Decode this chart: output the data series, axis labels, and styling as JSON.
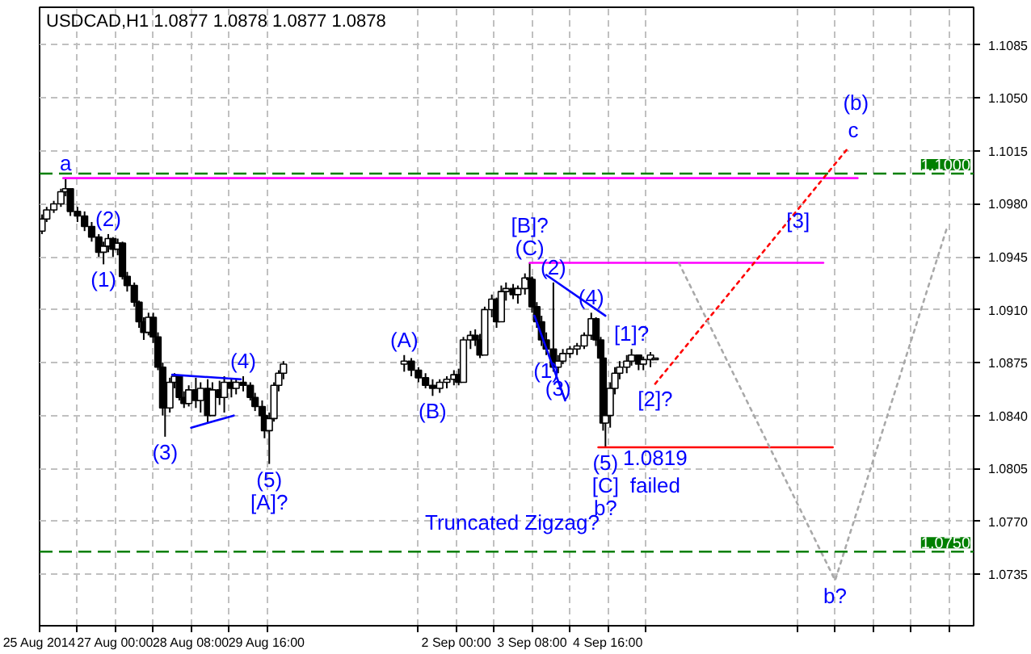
{
  "chart_data": {
    "type": "candlestick",
    "title": "USDCAD,H1  1.0877 1.0878 1.0877 1.0878",
    "color": "#000000",
    "x": [
      "2014-08-25T17:00",
      "2014-08-25T19:00",
      "2014-08-25T22:00",
      "2014-08-26T01:00",
      "2014-08-26T03:00",
      "2014-08-26T05:00",
      "2014-08-26T08:00",
      "2014-08-26T11:00",
      "2014-08-26T14:00",
      "2014-08-26T17:00",
      "2014-08-26T19:00",
      "2014-08-26T21:00",
      "2014-08-26T23:00",
      "2014-08-27T01:00",
      "2014-08-27T03:00",
      "2014-08-27T05:00",
      "2014-08-27T08:00",
      "2014-08-27T10:00",
      "2014-08-27T12:00",
      "2014-08-27T14:00",
      "2014-08-27T16:00",
      "2014-08-27T18:00",
      "2014-08-27T20:00",
      "2014-08-27T21:00",
      "2014-08-27T23:00",
      "2014-08-28T01:00",
      "2014-08-28T03:00",
      "2014-08-28T05:00",
      "2014-08-28T07:00",
      "2014-08-28T10:00",
      "2014-08-28T12:00",
      "2014-08-28T15:00",
      "2014-08-28T17:00",
      "2014-08-28T20:00",
      "2014-08-28T22:00",
      "2014-08-29T01:00",
      "2014-08-29T03:00",
      "2014-08-29T06:00",
      "2014-08-29T09:00",
      "2014-08-29T11:00",
      "2014-08-29T14:00",
      "2014-08-29T15:00",
      "2014-08-29T17:00",
      "2014-08-29T19:00",
      "2014-08-29T21:00",
      "2014-08-29T23:00",
      "2014-09-01T02:00",
      "2014-09-01T05:00",
      "2014-09-01T08:00",
      "2014-09-01T11:00",
      "2014-09-01T14:00",
      "2014-09-01T17:00",
      "2014-09-01T20:00",
      "2014-09-01T23:00",
      "2014-09-02T01:00",
      "2014-09-02T03:00",
      "2014-09-02T06:00",
      "2014-09-02T08:00",
      "2014-09-02T10:00",
      "2014-09-02T12:00",
      "2014-09-02T15:00",
      "2014-09-02T17:00",
      "2014-09-02T19:00",
      "2014-09-02T21:00",
      "2014-09-03T00:00",
      "2014-09-03T02:00",
      "2014-09-03T05:00",
      "2014-09-03T07:00",
      "2014-09-03T08:00",
      "2014-09-03T10:00",
      "2014-09-03T12:00",
      "2014-09-03T14:00",
      "2014-09-03T17:00",
      "2014-09-03T19:00",
      "2014-09-03T21:00",
      "2014-09-04T00:00",
      "2014-09-04T03:00",
      "2014-09-04T06:00",
      "2014-09-04T09:00",
      "2014-09-04T11:00",
      "2014-09-04T13:00",
      "2014-09-04T14:00",
      "2014-09-04T15:00",
      "2014-09-04T17:00",
      "2014-09-04T19:00",
      "2014-09-04T21:00",
      "2014-09-05T00:00",
      "2014-09-05T02:00",
      "2014-09-05T05:00",
      "2014-09-05T07:00",
      "2014-09-05T10:00",
      "2014-09-05T12:00"
    ],
    "ohlc": [
      [
        1.0962,
        1.0973,
        1.096,
        1.097
      ],
      [
        1.097,
        1.0978,
        1.0968,
        1.0976
      ],
      [
        1.0976,
        1.0982,
        1.0974,
        1.098
      ],
      [
        1.098,
        1.099,
        1.0978,
        1.0988
      ],
      [
        1.0988,
        1.0997,
        1.0985,
        1.099
      ],
      [
        1.099,
        1.099,
        1.0972,
        1.0975
      ],
      [
        1.0975,
        1.0978,
        1.0968,
        1.0972
      ],
      [
        1.0972,
        1.0975,
        1.0962,
        1.0965
      ],
      [
        1.0965,
        1.0968,
        1.0955,
        1.0958
      ],
      [
        1.0958,
        1.096,
        1.0945,
        1.0948
      ],
      [
        1.0948,
        1.0955,
        1.094,
        1.0952
      ],
      [
        1.0952,
        1.096,
        1.0948,
        1.0957
      ],
      [
        1.0957,
        1.0958,
        1.0945,
        1.095
      ],
      [
        1.095,
        1.0957,
        1.0946,
        1.0954
      ],
      [
        1.0954,
        1.0955,
        1.093,
        1.0932
      ],
      [
        1.0932,
        1.0935,
        1.0922,
        1.0926
      ],
      [
        1.0926,
        1.0928,
        1.0912,
        1.0915
      ],
      [
        1.0915,
        1.0916,
        1.0898,
        1.0902
      ],
      [
        1.0902,
        1.0905,
        1.089,
        1.0895
      ],
      [
        1.0895,
        1.0908,
        1.0893,
        1.0905
      ],
      [
        1.0905,
        1.0908,
        1.0888,
        1.0892
      ],
      [
        1.0892,
        1.0895,
        1.087,
        1.0872
      ],
      [
        1.0872,
        1.0875,
        1.084,
        1.0845
      ],
      [
        1.0845,
        1.085,
        1.0826,
        1.0845
      ],
      [
        1.0845,
        1.0865,
        1.0842,
        1.0862
      ],
      [
        1.0862,
        1.0868,
        1.0858,
        1.0866
      ],
      [
        1.0866,
        1.0866,
        1.085,
        1.0852
      ],
      [
        1.0852,
        1.0856,
        1.0845,
        1.0848
      ],
      [
        1.0848,
        1.086,
        1.0846,
        1.0857
      ],
      [
        1.0857,
        1.0865,
        1.0845,
        1.085
      ],
      [
        1.085,
        1.0862,
        1.0842,
        1.0858
      ],
      [
        1.0858,
        1.0864,
        1.0835,
        1.084
      ],
      [
        1.084,
        1.0862,
        1.084,
        1.0857
      ],
      [
        1.0857,
        1.0863,
        1.0847,
        1.0852
      ],
      [
        1.0852,
        1.0866,
        1.0842,
        1.0862
      ],
      [
        1.0862,
        1.0864,
        1.0852,
        1.0858
      ],
      [
        1.0858,
        1.0864,
        1.0854,
        1.0862
      ],
      [
        1.0862,
        1.0866,
        1.0856,
        1.086
      ],
      [
        1.086,
        1.0862,
        1.085,
        1.0852
      ],
      [
        1.0852,
        1.0855,
        1.0843,
        1.0846
      ],
      [
        1.0846,
        1.085,
        1.0838,
        1.084
      ],
      [
        1.084,
        1.0845,
        1.0825,
        1.083
      ],
      [
        1.083,
        1.0842,
        1.0808,
        1.0838
      ],
      [
        1.0838,
        1.0862,
        1.0836,
        1.086
      ],
      [
        1.086,
        1.087,
        1.0856,
        1.0868
      ],
      [
        1.0868,
        1.0876,
        1.0864,
        1.0874
      ],
      [
        1.0874,
        1.088,
        1.0869,
        1.0876
      ],
      [
        1.0876,
        1.0878,
        1.0866,
        1.087
      ],
      [
        1.087,
        1.0872,
        1.0862,
        1.0865
      ],
      [
        1.0865,
        1.0868,
        1.0858,
        1.086
      ],
      [
        1.086,
        1.0864,
        1.0853,
        1.0858
      ],
      [
        1.0858,
        1.0864,
        1.0855,
        1.0862
      ],
      [
        1.0862,
        1.0866,
        1.0858,
        1.0864
      ],
      [
        1.0864,
        1.087,
        1.086,
        1.0867
      ],
      [
        1.0867,
        1.0871,
        1.086,
        1.0862
      ],
      [
        1.0862,
        1.0892,
        1.0862,
        1.089
      ],
      [
        1.089,
        1.0896,
        1.0884,
        1.0893
      ],
      [
        1.0893,
        1.0897,
        1.0886,
        1.089
      ],
      [
        1.089,
        1.0894,
        1.0878,
        1.088
      ],
      [
        1.088,
        1.0912,
        1.088,
        1.091
      ],
      [
        1.091,
        1.092,
        1.0905,
        1.0917
      ],
      [
        1.0917,
        1.0918,
        1.0898,
        1.0902
      ],
      [
        1.0902,
        1.0926,
        1.0902,
        1.0922
      ],
      [
        1.0922,
        1.0928,
        1.0916,
        1.0924
      ],
      [
        1.0924,
        1.0927,
        1.0917,
        1.092
      ],
      [
        1.092,
        1.0926,
        1.0914,
        1.0924
      ],
      [
        1.0924,
        1.0934,
        1.092,
        1.0931
      ],
      [
        1.0931,
        1.0941,
        1.0926,
        1.093
      ],
      [
        1.093,
        1.0932,
        1.0908,
        1.0912
      ],
      [
        1.0912,
        1.0915,
        1.0898,
        1.0902
      ],
      [
        1.0902,
        1.0906,
        1.0886,
        1.089
      ],
      [
        1.089,
        1.0895,
        1.088,
        1.0884
      ],
      [
        1.0884,
        1.0928,
        1.0869,
        1.0872
      ],
      [
        1.0872,
        1.088,
        1.0868,
        1.0876
      ],
      [
        1.0876,
        1.0884,
        1.0874,
        1.0881
      ],
      [
        1.0881,
        1.0886,
        1.0878,
        1.0884
      ],
      [
        1.0884,
        1.0888,
        1.088,
        1.0886
      ],
      [
        1.0886,
        1.0895,
        1.0884,
        1.0893
      ],
      [
        1.0893,
        1.0908,
        1.089,
        1.0904
      ],
      [
        1.0904,
        1.0905,
        1.0886,
        1.089
      ],
      [
        1.089,
        1.0892,
        1.0875,
        1.0878
      ],
      [
        1.0878,
        1.088,
        1.083,
        1.0835
      ],
      [
        1.0835,
        1.0848,
        1.0819,
        1.084
      ],
      [
        1.084,
        1.0862,
        1.0832,
        1.0858
      ],
      [
        1.0858,
        1.0872,
        1.0854,
        1.0868
      ],
      [
        1.0868,
        1.0876,
        1.0864,
        1.0872
      ],
      [
        1.0872,
        1.088,
        1.0868,
        1.0876
      ],
      [
        1.0876,
        1.0884,
        1.0873,
        1.088
      ],
      [
        1.088,
        1.088,
        1.087,
        1.0874
      ],
      [
        1.0874,
        1.0879,
        1.087,
        1.0877
      ],
      [
        1.0877,
        1.0882,
        1.0872,
        1.088
      ],
      [
        1.0877,
        1.0878,
        1.0877,
        1.0878
      ]
    ],
    "series": [
      {
        "type": "line",
        "color": "#ff00ff",
        "line_style": "solid",
        "x": [
          "2014-08-26T02:00",
          "2014-09-09T01:30"
        ],
        "values": [
          1.0997,
          1.0997
        ]
      },
      {
        "type": "line",
        "color": "#ff00ff",
        "line_style": "solid",
        "x": [
          "2014-09-03T07:00",
          "2014-09-08T11:00"
        ],
        "values": [
          1.0941,
          1.0941
        ]
      },
      {
        "type": "line",
        "color": "#ff0000",
        "line_style": "solid",
        "x": [
          "2014-09-04T12:00",
          "2014-09-08T15:00"
        ],
        "values": [
          1.0819,
          1.0819
        ]
      },
      {
        "type": "line",
        "color": "#0000ff",
        "line_style": "solid",
        "x": [
          "2014-08-28T00:00",
          "2014-08-29T05:00"
        ],
        "values": [
          1.0867,
          1.0864
        ]
      },
      {
        "type": "line",
        "color": "#0000ff",
        "line_style": "solid",
        "x": [
          "2014-08-28T08:00",
          "2014-08-29T02:00"
        ],
        "values": [
          1.0832,
          1.084
        ]
      },
      {
        "type": "line",
        "color": "#0000ff",
        "line_style": "solid",
        "x": [
          "2014-09-03T14:00",
          "2014-09-04T15:00"
        ],
        "values": [
          1.0933,
          1.0906
        ]
      },
      {
        "type": "line",
        "color": "#0000ff",
        "line_style": "solid",
        "x": [
          "2014-09-03T09:00",
          "2014-09-03T22:00"
        ],
        "values": [
          1.0906,
          1.085
        ]
      },
      {
        "type": "line",
        "color": "#ff0000",
        "line_style": "dotted",
        "x": [
          "2014-09-05T12:00",
          "2014-09-08T21:00"
        ],
        "values": [
          1.0861,
          1.1016
        ]
      },
      {
        "type": "line",
        "color": "#a9a9a9",
        "line_style": "dotted",
        "x": [
          "2014-09-05T22:00",
          "2014-09-08T16:00",
          "2014-09-10T15:00"
        ],
        "values": [
          1.0941,
          1.0731,
          1.0963
        ]
      }
    ],
    "ref_lines": [
      {
        "axis": "y",
        "value": 1.1,
        "label": "1.1000",
        "color": "#007f00",
        "line_style": "dashed"
      },
      {
        "axis": "y",
        "value": 1.075,
        "label": "1.0750",
        "color": "#007f00",
        "line_style": "dashed"
      }
    ],
    "annotations": [
      {
        "text": "a",
        "x": "2014-08-26T03:00",
        "y": 1.0997
      },
      {
        "text": "(2)",
        "x": "2014-08-26T21:00",
        "y": 1.096
      },
      {
        "text": "(1)",
        "x": "2014-08-26T19:00",
        "y": 1.094
      },
      {
        "text": "(3)",
        "x": "2014-08-27T21:00",
        "y": 1.0826
      },
      {
        "text": "(4)",
        "x": "2014-08-29T06:00",
        "y": 1.0866
      },
      {
        "text": "(A)",
        "x": "2014-09-01T02:00",
        "y": 1.088
      },
      {
        "text": "(B)",
        "x": "2014-09-01T14:00",
        "y": 1.0853
      },
      {
        "text": "(5)",
        "x": "2014-08-29T17:00",
        "y": 1.0808
      },
      {
        "text": "[A]?",
        "x": "2014-08-29T17:00",
        "y": 1.0808
      },
      "Truncated Zigzag?",
      {
        "text": "(C)",
        "x": "2014-09-03T07:00",
        "y": 1.0941
      },
      {
        "text": "[B]?",
        "x": "2014-09-03T07:00",
        "y": 1.0941
      },
      {
        "text": "(2)",
        "x": "2014-09-03T17:00",
        "y": 1.0928
      },
      {
        "text": "(4)",
        "x": "2014-09-04T09:00",
        "y": 1.0908
      },
      {
        "text": "(1)",
        "x": "2014-09-03T14:00",
        "y": 1.088
      },
      {
        "text": "(3)",
        "x": "2014-09-03T19:00",
        "y": 1.0868
      },
      {
        "text": "[1]?",
        "x": "2014-09-05T02:00",
        "y": 1.0884
      },
      {
        "text": "[2]?",
        "x": "2014-09-05T12:00",
        "y": 1.0861
      },
      {
        "text": "(5)",
        "x": "2014-09-04T15:00",
        "y": 1.0819
      },
      {
        "text": "[C]",
        "x": "2014-09-04T15:00",
        "y": 1.0819
      },
      {
        "text": "b?",
        "x": "2014-09-04T15:00",
        "y": 1.0819
      },
      {
        "text": "1.0819",
        "x": "2014-09-05T12:00",
        "y": 1.0819
      },
      {
        "text": "failed",
        "x": "2014-09-05T12:00",
        "y": 1.0819
      },
      "[3]",
      "(b)",
      "c",
      {
        "text": "b?",
        "x": "2014-09-08T16:00",
        "y": 1.0731
      }
    ],
    "xlim": [
      "2014-08-25T16:00",
      "2014-09-11T02:30"
    ],
    "ylim": [
      1.0701,
      1.111
    ],
    "xticks": [
      {
        "value": "2014-08-25T16:00",
        "label": "25 Aug 2014"
      },
      {
        "value": "2014-08-26T08:00",
        "label": null
      },
      {
        "value": "2014-08-27T00:00",
        "label": "27 Aug 00:00"
      },
      {
        "value": "2014-08-27T16:00",
        "label": null
      },
      {
        "value": "2014-08-28T08:00",
        "label": "28 Aug 08:00"
      },
      {
        "value": "2014-08-29T00:00",
        "label": null
      },
      {
        "value": "2014-08-29T16:00",
        "label": "29 Aug 16:00"
      },
      {
        "value": "2014-09-01T08:00",
        "label": null
      },
      {
        "value": "2014-09-02T00:00",
        "label": "2 Sep 00:00"
      },
      {
        "value": "2014-09-02T16:00",
        "label": null
      },
      {
        "value": "2014-09-03T08:00",
        "label": "3 Sep 08:00"
      },
      {
        "value": "2014-09-04T00:00",
        "label": null
      },
      {
        "value": "2014-09-04T16:00",
        "label": "4 Sep 16:00"
      },
      {
        "value": "2014-09-05T08:00",
        "label": null
      },
      {
        "value": "2014-09-08T00:00",
        "label": null
      },
      {
        "value": "2014-09-08T16:00",
        "label": null
      },
      {
        "value": "2014-09-09T08:00",
        "label": null
      },
      {
        "value": "2014-09-10T00:00",
        "label": null
      },
      {
        "value": "2014-09-10T16:00",
        "label": null
      }
    ],
    "yticks": [
      1.0735,
      {
        "value": 1.077,
        "label": "1.0770"
      },
      1.0805,
      {
        "value": 1.084,
        "label": "1.0840"
      },
      1.0875,
      {
        "value": 1.091,
        "label": "1.0910"
      },
      1.0945,
      {
        "value": 1.098,
        "label": "1.0980"
      },
      1.1015,
      {
        "value": 1.105,
        "label": "1.1050"
      },
      1.1085
    ],
    "grid": true
  }
}
